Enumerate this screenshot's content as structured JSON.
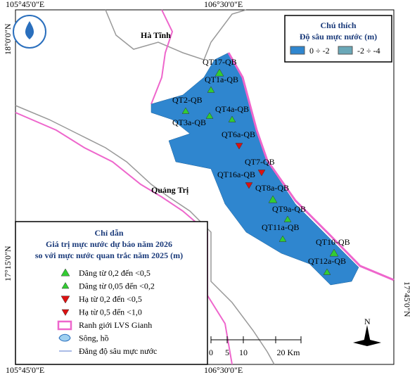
{
  "coords": {
    "top_left": "105°45'0\"E",
    "top_mid": "106°30'0\"E",
    "bottom_left": "105°45'0\"E",
    "bottom_mid": "106°30'0\"E",
    "left_top": "18°0'0\"N",
    "left_bottom": "17°15'0\"N",
    "right_bottom": "17°45'0\"N"
  },
  "places": [
    "Hà Tĩnh",
    "Quảng Trị"
  ],
  "legend_top": {
    "title": "Chú thích",
    "subtitle": "Độ sâu mực nước (m)",
    "items": [
      {
        "label": "0 ÷ -2",
        "color": "#2f86cf"
      },
      {
        "label": "-2 ÷ -4",
        "color": "#6aa8b8"
      }
    ]
  },
  "legend_bottom": {
    "title": "Chỉ dẫn",
    "subtitle1": "Giá trị mực nước dự báo năm 2026",
    "subtitle2": "so với mực nước quan trắc năm 2025 (m)",
    "items": [
      "Dâng từ 0,2 đến <0,5",
      "Dâng từ 0,05 đến <0,2",
      "Hạ từ 0,2 đến <0,5",
      "Hạ từ 0,5 đến <1,0",
      "Ranh giới LVS Gianh",
      "Sông, hồ",
      "Đẳng độ sâu mực nước"
    ]
  },
  "stations": [
    {
      "label": "QT17-QB",
      "symbol": "up"
    },
    {
      "label": "QT1a-QB",
      "symbol": "up"
    },
    {
      "label": "QT2-QB",
      "symbol": "up"
    },
    {
      "label": "QT3a-QB",
      "symbol": "up"
    },
    {
      "label": "QT4a-QB",
      "symbol": "up"
    },
    {
      "label": "QT6a-QB",
      "symbol": "down"
    },
    {
      "label": "QT7-QB",
      "symbol": "down"
    },
    {
      "label": "QT16a-QB",
      "symbol": "down"
    },
    {
      "label": "QT8a-QB",
      "symbol": "up"
    },
    {
      "label": "QT9a-QB",
      "symbol": "up"
    },
    {
      "label": "QT11a-QB",
      "symbol": "up"
    },
    {
      "label": "QT10-QB",
      "symbol": "up"
    },
    {
      "label": "QT12a-QB",
      "symbol": "up"
    }
  ],
  "scale": {
    "ticks": [
      "0",
      "5",
      "10",
      "20 Km"
    ]
  },
  "north": "N"
}
